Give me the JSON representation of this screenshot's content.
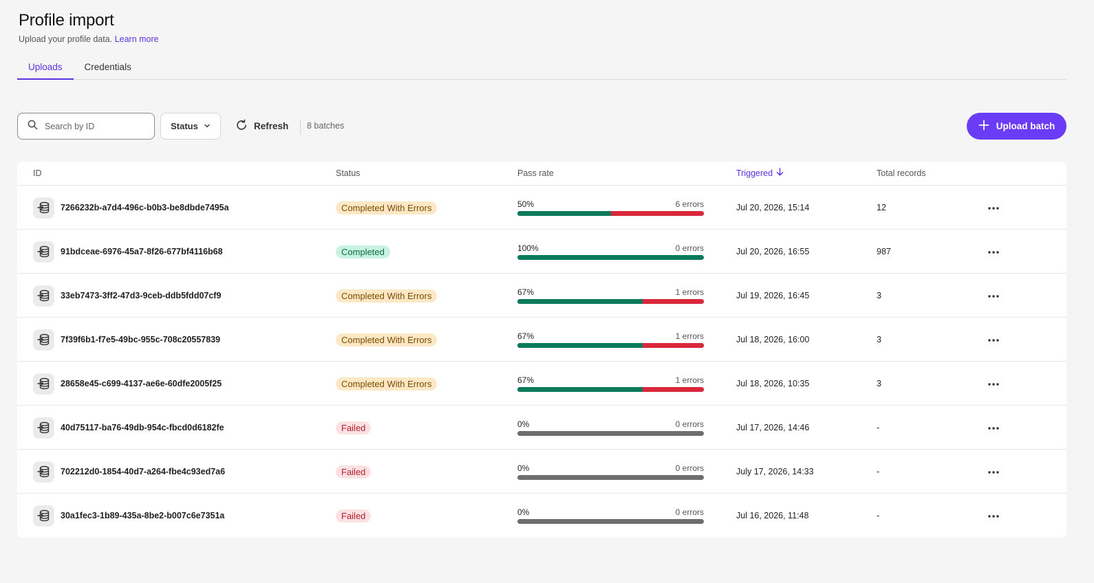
{
  "header": {
    "title": "Profile import",
    "subtitle": "Upload your profile data.",
    "learn_more": "Learn more"
  },
  "tabs": [
    {
      "label": "Uploads",
      "active": true
    },
    {
      "label": "Credentials",
      "active": false
    }
  ],
  "toolbar": {
    "search_placeholder": "Search by ID",
    "status_label": "Status",
    "refresh_label": "Refresh",
    "batch_count": "8 batches",
    "upload_label": "Upload batch"
  },
  "table": {
    "columns": {
      "id": "ID",
      "status": "Status",
      "pass_rate": "Pass rate",
      "triggered": "Triggered",
      "total_records": "Total records"
    },
    "rows": [
      {
        "id": "7266232b-a7d4-496c-b0b3-be8dbde7495a",
        "status": "Completed With Errors",
        "status_kind": "warn",
        "pass_rate": "50%",
        "pass_fraction": 0.5,
        "errors": "6 errors",
        "triggered": "Jul 20, 2026, 15:14",
        "total": "12"
      },
      {
        "id": "91bdceae-6976-45a7-8f26-677bf4116b68",
        "status": "Completed",
        "status_kind": "ok",
        "pass_rate": "100%",
        "pass_fraction": 1.0,
        "errors": "0 errors",
        "triggered": "Jul 20, 2026, 16:55",
        "total": "987"
      },
      {
        "id": "33eb7473-3ff2-47d3-9ceb-ddb5fdd07cf9",
        "status": "Completed With Errors",
        "status_kind": "warn",
        "pass_rate": "67%",
        "pass_fraction": 0.67,
        "errors": "1 errors",
        "triggered": "Jul 19, 2026, 16:45",
        "total": "3"
      },
      {
        "id": "7f39f6b1-f7e5-49bc-955c-708c20557839",
        "status": "Completed With Errors",
        "status_kind": "warn",
        "pass_rate": "67%",
        "pass_fraction": 0.67,
        "errors": "1 errors",
        "triggered": "Jul 18, 2026, 16:00",
        "total": "3"
      },
      {
        "id": "28658e45-c699-4137-ae6e-60dfe2005f25",
        "status": "Completed With Errors",
        "status_kind": "warn",
        "pass_rate": "67%",
        "pass_fraction": 0.67,
        "errors": "1 errors",
        "triggered": "Jul 18, 2026, 10:35",
        "total": "3"
      },
      {
        "id": "40d75117-ba76-49db-954c-fbcd0d6182fe",
        "status": "Failed",
        "status_kind": "fail",
        "pass_rate": "0%",
        "pass_fraction": 0,
        "errors": "0 errors",
        "triggered": "Jul 17, 2026, 14:46",
        "total": "-"
      },
      {
        "id": "702212d0-1854-40d7-a264-fbe4c93ed7a6",
        "status": "Failed",
        "status_kind": "fail",
        "pass_rate": "0%",
        "pass_fraction": 0,
        "errors": "0 errors",
        "triggered": "July 17, 2026, 14:33",
        "total": "-"
      },
      {
        "id": "30a1fec3-1b89-435a-8be2-b007c6e7351a",
        "status": "Failed",
        "status_kind": "fail",
        "pass_rate": "0%",
        "pass_fraction": 0,
        "errors": "0 errors",
        "triggered": "Jul 16, 2026, 11:48",
        "total": "-"
      }
    ]
  },
  "icons": {
    "search": "search-icon",
    "status_dropdown": "chevron-down-icon",
    "refresh": "refresh-icon",
    "upload": "plus-icon",
    "sort": "arrow-down-icon",
    "row": "database-icon",
    "row_menu": "more-horizontal-icon"
  },
  "colors": {
    "accent": "#6b3cf5",
    "pass": "#0a7a5a",
    "fail": "#d9283a",
    "neutral_bar": "#6e6e6e"
  }
}
